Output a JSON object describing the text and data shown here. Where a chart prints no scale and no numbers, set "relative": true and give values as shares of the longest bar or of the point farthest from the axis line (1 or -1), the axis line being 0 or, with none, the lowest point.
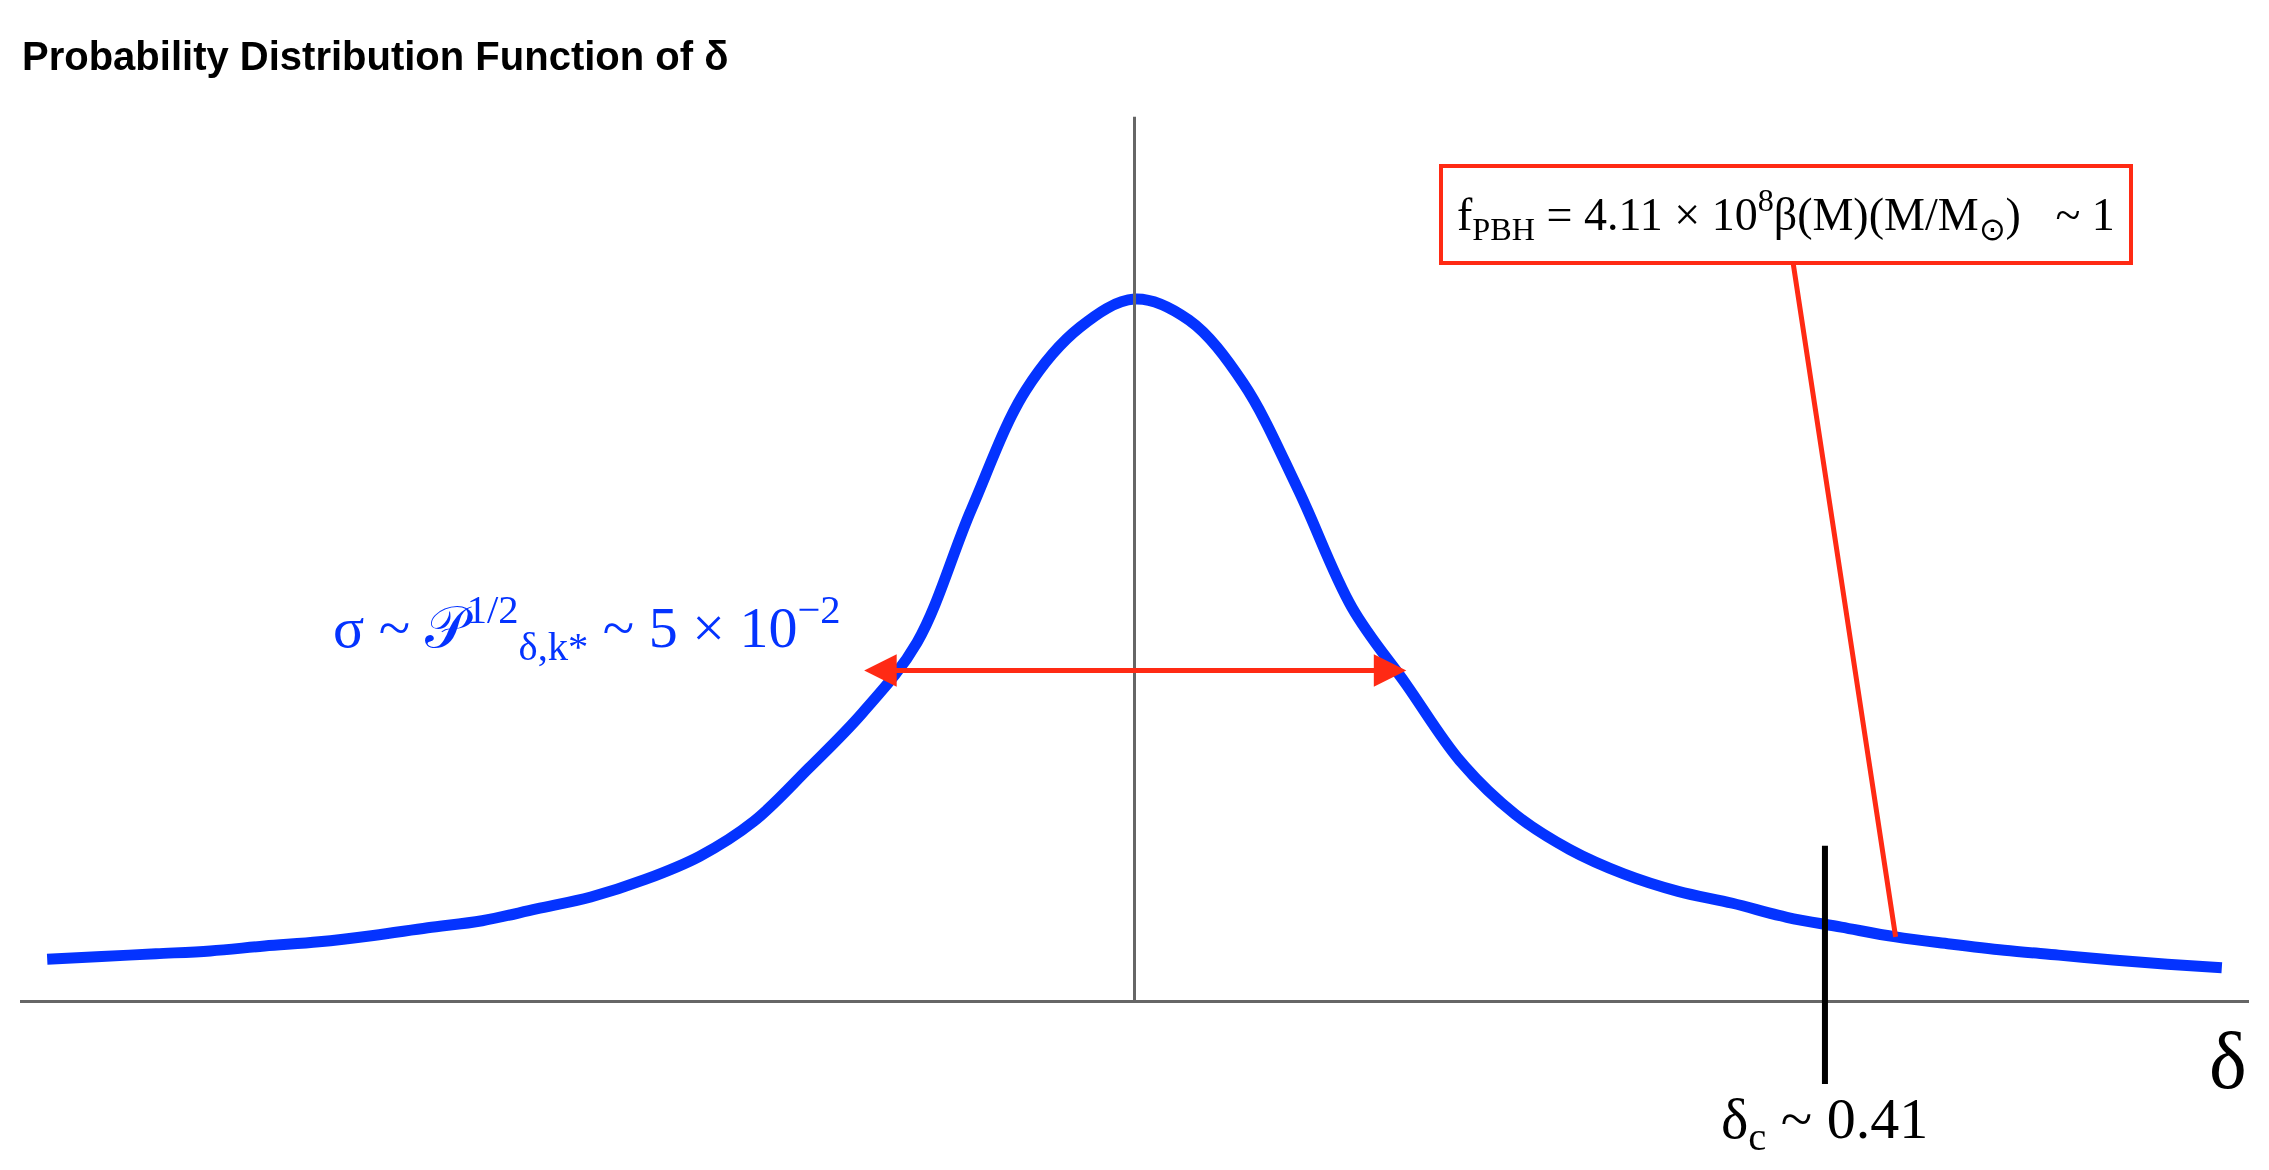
{
  "chart_data": {
    "type": "line",
    "title": "Probability Distribution Function of δ",
    "xlabel": "δ",
    "relative": true,
    "categories": [
      null,
      null,
      null,
      null,
      null,
      null,
      null,
      null,
      null,
      null,
      null,
      null,
      null,
      null,
      null,
      null,
      null,
      null,
      null,
      null,
      null,
      null,
      null,
      null,
      null,
      null,
      null,
      null,
      null,
      null,
      null,
      null,
      null,
      null,
      null,
      null,
      null,
      null,
      null,
      null,
      null
    ],
    "series": [
      {
        "color": "#0433ff",
        "values": [
          0.058,
          0.062,
          0.066,
          0.07,
          0.077,
          0.083,
          0.092,
          0.103,
          0.113,
          0.13,
          0.147,
          0.172,
          0.205,
          0.255,
          0.33,
          0.41,
          0.51,
          0.7,
          0.87,
          0.96,
          1.0,
          0.97,
          0.88,
          0.73,
          0.56,
          0.45,
          0.34,
          0.265,
          0.215,
          0.18,
          0.155,
          0.138,
          0.118,
          0.104,
          0.09,
          0.08,
          0.071,
          0.064,
          0.057,
          0.051,
          0.046
        ]
      }
    ],
    "annotations": [
      "σ ~ 𝒫$^{1/2}$$_{δ,k*}$ ~ 5 × 10$^{−2}$",
      "f$_{PBH}$ = 4.11 × 10$^{8}$β(M)(M/M$_{⊙}$)   ~ 1",
      "δ$_{c}$ ~ 0.41"
    ],
    "marker": "none",
    "line_style": "solid"
  }
}
